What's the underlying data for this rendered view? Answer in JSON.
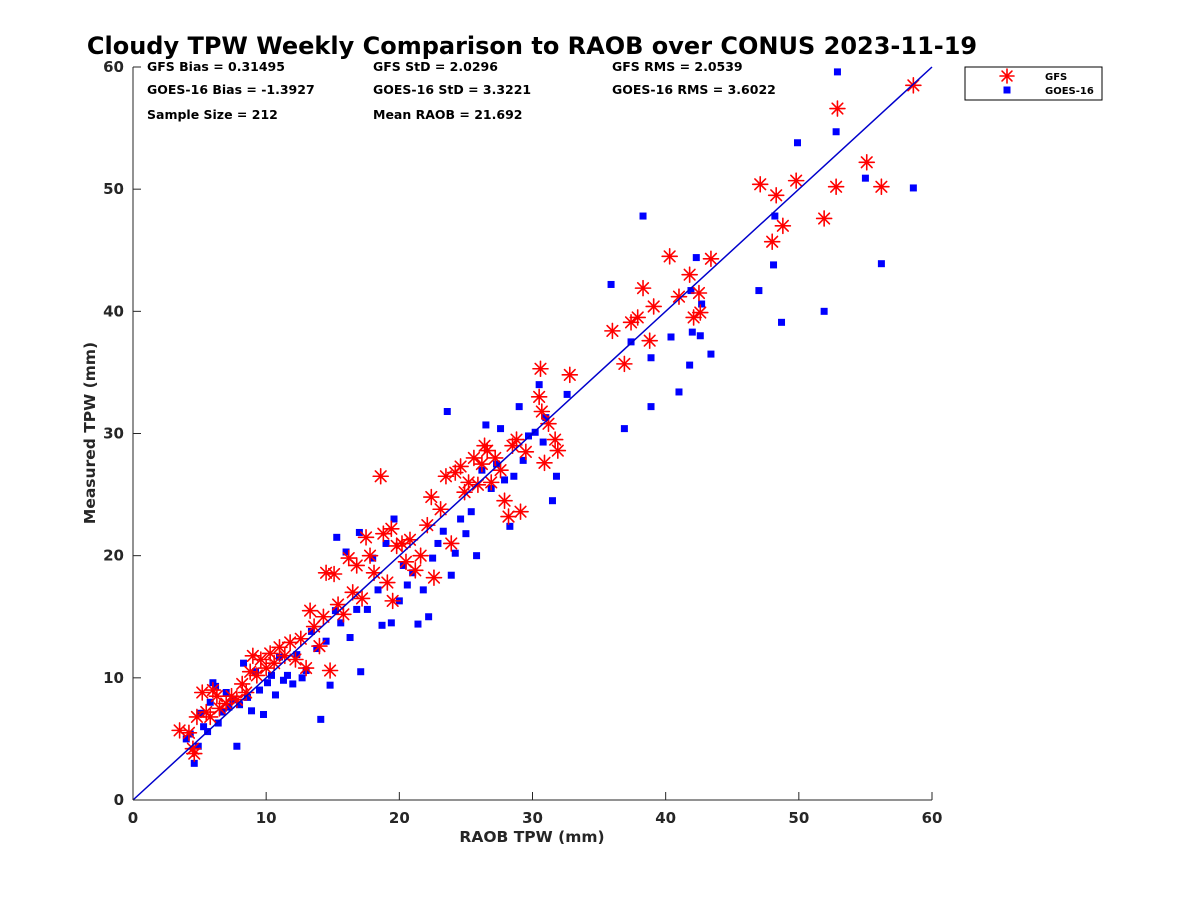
{
  "chart_data": {
    "type": "scatter",
    "title": "Cloudy TPW Weekly Comparison to RAOB over CONUS 2023-11-19",
    "xlabel": "RAOB TPW (mm)",
    "ylabel": "Measured TPW (mm)",
    "xlim": [
      0,
      60
    ],
    "ylim": [
      0,
      60
    ],
    "xticks": [
      "0",
      "10",
      "20",
      "30",
      "40",
      "50",
      "60"
    ],
    "yticks": [
      "0",
      "10",
      "20",
      "30",
      "40",
      "50",
      "60"
    ],
    "grid": false,
    "legend_position": "outside-top-right",
    "stats": [
      [
        "GFS Bias = 0.31495",
        "GFS StD = 2.0296",
        "GFS RMS = 2.0539"
      ],
      [
        "GOES-16 Bias = -1.3927",
        "GOES-16 StD = 3.3221",
        "GOES-16 RMS = 3.6022"
      ],
      [
        "Sample Size = 212",
        "Mean RAOB = 21.692"
      ]
    ],
    "series": [
      {
        "name": "GFS",
        "marker": "asterisk",
        "color": "#ff0000",
        "points": [
          [
            3.5,
            5.7
          ],
          [
            4.2,
            5.5
          ],
          [
            4.5,
            4.2
          ],
          [
            4.6,
            3.8
          ],
          [
            4.8,
            6.8
          ],
          [
            5.2,
            8.8
          ],
          [
            5.5,
            7.2
          ],
          [
            5.8,
            6.8
          ],
          [
            6.0,
            9.0
          ],
          [
            6.3,
            8.5
          ],
          [
            6.5,
            7.5
          ],
          [
            7.0,
            7.9
          ],
          [
            7.4,
            8.5
          ],
          [
            7.8,
            8.2
          ],
          [
            8.2,
            9.5
          ],
          [
            8.5,
            8.8
          ],
          [
            8.8,
            10.5
          ],
          [
            9.0,
            11.8
          ],
          [
            9.3,
            10.2
          ],
          [
            9.6,
            11.5
          ],
          [
            10.0,
            10.8
          ],
          [
            10.3,
            12.0
          ],
          [
            10.6,
            11.2
          ],
          [
            11.0,
            12.5
          ],
          [
            11.4,
            11.8
          ],
          [
            11.8,
            12.9
          ],
          [
            12.2,
            11.5
          ],
          [
            12.6,
            13.2
          ],
          [
            13.0,
            10.8
          ],
          [
            13.3,
            15.5
          ],
          [
            13.6,
            14.2
          ],
          [
            14.0,
            12.6
          ],
          [
            14.3,
            15.0
          ],
          [
            14.5,
            18.6
          ],
          [
            14.8,
            10.6
          ],
          [
            15.1,
            18.5
          ],
          [
            15.4,
            16.0
          ],
          [
            15.8,
            15.2
          ],
          [
            16.2,
            19.8
          ],
          [
            16.5,
            17.0
          ],
          [
            16.8,
            19.2
          ],
          [
            17.2,
            16.5
          ],
          [
            17.5,
            21.5
          ],
          [
            17.8,
            20.0
          ],
          [
            18.1,
            18.6
          ],
          [
            18.6,
            26.5
          ],
          [
            18.8,
            21.8
          ],
          [
            19.1,
            17.8
          ],
          [
            19.4,
            22.2
          ],
          [
            19.5,
            16.3
          ],
          [
            19.8,
            20.8
          ],
          [
            20.2,
            21.0
          ],
          [
            20.5,
            19.5
          ],
          [
            20.8,
            21.3
          ],
          [
            21.2,
            18.8
          ],
          [
            21.6,
            20.0
          ],
          [
            22.1,
            22.5
          ],
          [
            22.4,
            24.8
          ],
          [
            22.6,
            18.2
          ],
          [
            23.1,
            23.8
          ],
          [
            23.5,
            26.5
          ],
          [
            23.9,
            21.0
          ],
          [
            24.2,
            26.8
          ],
          [
            24.6,
            27.3
          ],
          [
            24.9,
            25.2
          ],
          [
            25.2,
            26.0
          ],
          [
            25.6,
            28.0
          ],
          [
            25.9,
            25.8
          ],
          [
            26.2,
            27.5
          ],
          [
            26.4,
            29.0
          ],
          [
            26.6,
            28.6
          ],
          [
            26.9,
            26.0
          ],
          [
            27.2,
            28.0
          ],
          [
            27.6,
            27.0
          ],
          [
            27.9,
            24.5
          ],
          [
            28.2,
            23.2
          ],
          [
            28.5,
            29.0
          ],
          [
            28.8,
            29.5
          ],
          [
            29.1,
            23.6
          ],
          [
            29.5,
            28.5
          ],
          [
            30.5,
            33.0
          ],
          [
            30.6,
            35.3
          ],
          [
            30.7,
            31.8
          ],
          [
            30.9,
            27.6
          ],
          [
            31.2,
            30.8
          ],
          [
            31.7,
            29.5
          ],
          [
            31.9,
            28.6
          ],
          [
            32.8,
            34.8
          ],
          [
            36.0,
            38.4
          ],
          [
            36.9,
            35.7
          ],
          [
            37.4,
            39.1
          ],
          [
            37.9,
            39.5
          ],
          [
            38.3,
            41.9
          ],
          [
            38.8,
            37.6
          ],
          [
            39.1,
            40.4
          ],
          [
            40.3,
            44.5
          ],
          [
            41.0,
            41.2
          ],
          [
            41.8,
            43.0
          ],
          [
            42.1,
            39.5
          ],
          [
            42.5,
            41.5
          ],
          [
            42.6,
            39.9
          ],
          [
            43.4,
            44.3
          ],
          [
            47.1,
            50.4
          ],
          [
            48.0,
            45.7
          ],
          [
            48.3,
            49.5
          ],
          [
            48.8,
            47.0
          ],
          [
            49.8,
            50.7
          ],
          [
            51.9,
            47.6
          ],
          [
            52.8,
            50.2
          ],
          [
            52.9,
            56.6
          ],
          [
            55.1,
            52.2
          ],
          [
            56.2,
            50.2
          ],
          [
            58.6,
            58.5
          ]
        ]
      },
      {
        "name": "GOES-16",
        "marker": "square",
        "color": "#0000ff",
        "points": [
          [
            4.0,
            5.0
          ],
          [
            4.3,
            5.4
          ],
          [
            4.6,
            3.0
          ],
          [
            4.9,
            4.4
          ],
          [
            5.1,
            7.1
          ],
          [
            5.3,
            6.0
          ],
          [
            5.6,
            5.6
          ],
          [
            5.8,
            8.0
          ],
          [
            6.0,
            9.6
          ],
          [
            6.2,
            9.3
          ],
          [
            6.4,
            6.3
          ],
          [
            6.7,
            7.2
          ],
          [
            7.0,
            8.8
          ],
          [
            7.2,
            7.6
          ],
          [
            7.5,
            8.2
          ],
          [
            7.8,
            4.4
          ],
          [
            8.0,
            7.8
          ],
          [
            8.3,
            11.2
          ],
          [
            8.6,
            8.4
          ],
          [
            8.9,
            7.3
          ],
          [
            9.2,
            10.5
          ],
          [
            9.5,
            9.0
          ],
          [
            9.8,
            7.0
          ],
          [
            10.1,
            9.6
          ],
          [
            10.4,
            10.2
          ],
          [
            10.7,
            8.6
          ],
          [
            11.0,
            11.7
          ],
          [
            11.3,
            9.8
          ],
          [
            11.6,
            10.2
          ],
          [
            12.0,
            9.5
          ],
          [
            12.3,
            11.9
          ],
          [
            12.7,
            10.0
          ],
          [
            13.0,
            10.6
          ],
          [
            13.4,
            13.8
          ],
          [
            13.8,
            12.4
          ],
          [
            14.1,
            6.6
          ],
          [
            14.5,
            13.0
          ],
          [
            14.8,
            9.4
          ],
          [
            15.2,
            15.5
          ],
          [
            15.3,
            21.5
          ],
          [
            15.6,
            14.5
          ],
          [
            16.0,
            20.3
          ],
          [
            16.3,
            13.3
          ],
          [
            16.8,
            15.6
          ],
          [
            17.0,
            21.9
          ],
          [
            17.1,
            10.5
          ],
          [
            17.6,
            15.6
          ],
          [
            18.0,
            19.8
          ],
          [
            18.4,
            17.2
          ],
          [
            18.7,
            14.3
          ],
          [
            19.0,
            21.0
          ],
          [
            19.4,
            14.5
          ],
          [
            19.6,
            23.0
          ],
          [
            20.0,
            16.3
          ],
          [
            20.3,
            19.2
          ],
          [
            20.6,
            17.6
          ],
          [
            21.0,
            18.6
          ],
          [
            21.4,
            14.4
          ],
          [
            21.8,
            17.2
          ],
          [
            22.2,
            15.0
          ],
          [
            22.5,
            19.8
          ],
          [
            22.9,
            21.0
          ],
          [
            23.3,
            22.0
          ],
          [
            23.6,
            31.8
          ],
          [
            23.9,
            18.4
          ],
          [
            24.2,
            20.2
          ],
          [
            24.6,
            23.0
          ],
          [
            25.0,
            21.8
          ],
          [
            25.4,
            23.6
          ],
          [
            25.8,
            20.0
          ],
          [
            26.2,
            27.0
          ],
          [
            26.5,
            30.7
          ],
          [
            26.9,
            25.5
          ],
          [
            27.3,
            27.5
          ],
          [
            27.6,
            30.4
          ],
          [
            27.9,
            26.2
          ],
          [
            28.3,
            22.4
          ],
          [
            28.6,
            26.5
          ],
          [
            29.0,
            32.2
          ],
          [
            29.3,
            27.8
          ],
          [
            29.7,
            29.8
          ],
          [
            30.2,
            30.1
          ],
          [
            30.5,
            34.0
          ],
          [
            30.8,
            29.3
          ],
          [
            31.0,
            31.3
          ],
          [
            31.5,
            24.5
          ],
          [
            31.8,
            26.5
          ],
          [
            32.6,
            33.2
          ],
          [
            35.9,
            42.2
          ],
          [
            36.9,
            30.4
          ],
          [
            37.4,
            37.5
          ],
          [
            38.3,
            47.8
          ],
          [
            38.9,
            32.2
          ],
          [
            38.9,
            36.2
          ],
          [
            40.4,
            37.9
          ],
          [
            41.0,
            33.4
          ],
          [
            41.8,
            35.6
          ],
          [
            41.9,
            41.7
          ],
          [
            42.0,
            38.3
          ],
          [
            42.3,
            44.4
          ],
          [
            42.6,
            38.0
          ],
          [
            42.7,
            40.6
          ],
          [
            43.4,
            36.5
          ],
          [
            47.0,
            41.7
          ],
          [
            48.1,
            43.8
          ],
          [
            48.2,
            47.8
          ],
          [
            48.7,
            39.1
          ],
          [
            49.9,
            53.8
          ],
          [
            51.9,
            40.0
          ],
          [
            52.8,
            54.7
          ],
          [
            52.9,
            59.6
          ],
          [
            55.0,
            50.9
          ],
          [
            56.2,
            43.9
          ],
          [
            58.6,
            50.1
          ]
        ]
      }
    ],
    "reference_line": {
      "from": [
        0,
        0
      ],
      "to": [
        60,
        60
      ],
      "color": "#0000cc"
    }
  }
}
